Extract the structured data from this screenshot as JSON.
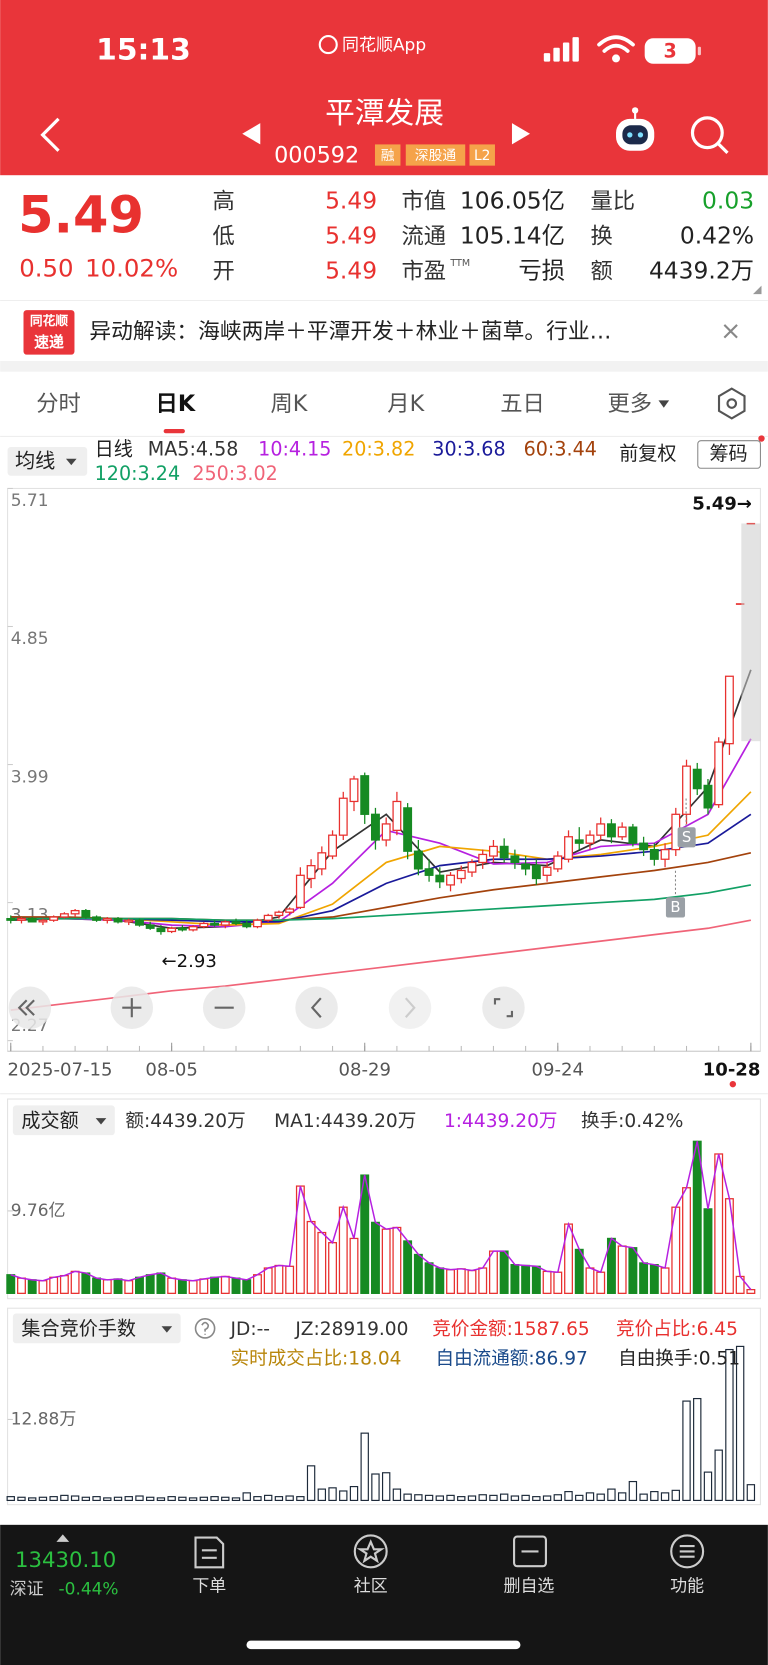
{
  "status": {
    "time": "15:13",
    "app": "同花顺App",
    "battery": "3"
  },
  "header": {
    "title": "平潭发展",
    "code": "000592",
    "tags": [
      "融",
      "深股通",
      "L2"
    ]
  },
  "quote": {
    "price": "5.49",
    "change": "0.50",
    "pct": "10.02%",
    "fields": [
      {
        "label": "高",
        "value": "5.49",
        "color": "#e8312f"
      },
      {
        "label": "低",
        "value": "5.49",
        "color": "#e8312f"
      },
      {
        "label": "开",
        "value": "5.49",
        "color": "#e8312f"
      },
      {
        "label": "市值",
        "value": "106.05亿",
        "color": "#222222"
      },
      {
        "label": "流通",
        "value": "105.14亿",
        "color": "#222222"
      },
      {
        "label": "市盈",
        "sup": "TTM",
        "value": "亏损",
        "color": "#222222"
      },
      {
        "label": "量比",
        "value": "0.03",
        "color": "#17a02b"
      },
      {
        "label": "换",
        "value": "0.42%",
        "color": "#222222"
      },
      {
        "label": "额",
        "value": "4439.2万",
        "color": "#222222"
      }
    ]
  },
  "news": {
    "badge": [
      "同花顺",
      "速递"
    ],
    "text": "异动解读：海峡两岸＋平潭开发＋林业＋菌草。行业…"
  },
  "tabs": [
    "分时",
    "日K",
    "周K",
    "月K",
    "五日",
    "更多"
  ],
  "ma_bar": {
    "button": "均线",
    "period": "日线",
    "adjust": "前复权",
    "chips": "筹码",
    "items": [
      {
        "label": "MA5:4.58",
        "color": "#333333"
      },
      {
        "label": "10:4.15",
        "color": "#b620e0"
      },
      {
        "label": "20:3.82",
        "color": "#f0a500"
      },
      {
        "label": "30:3.68",
        "color": "#1a1a9a"
      },
      {
        "label": "60:3.44",
        "color": "#a3420c"
      },
      {
        "label": "120:3.24",
        "color": "#12a065"
      },
      {
        "label": "250:3.02",
        "color": "#f06478"
      }
    ]
  },
  "chart_data": [
    {
      "type": "candlestick",
      "categories": [
        "2025-07-15",
        null,
        null,
        null,
        null,
        null,
        null,
        null,
        null,
        null,
        null,
        null,
        null,
        null,
        null,
        "08-05",
        null,
        null,
        null,
        null,
        null,
        null,
        null,
        null,
        null,
        null,
        null,
        null,
        null,
        null,
        null,
        null,
        null,
        "08-29",
        null,
        null,
        null,
        null,
        null,
        null,
        null,
        null,
        null,
        null,
        null,
        null,
        null,
        null,
        null,
        null,
        null,
        "09-24",
        null,
        null,
        null,
        null,
        null,
        null,
        null,
        null,
        null,
        null,
        null,
        null,
        null,
        null,
        null,
        null,
        null,
        "10-28"
      ],
      "open": [
        3.03,
        3.02,
        3.03,
        3.01,
        3.02,
        3.04,
        3.06,
        3.08,
        3.04,
        3.02,
        3.03,
        3.01,
        3.02,
        2.99,
        2.97,
        2.95,
        2.97,
        2.96,
        2.98,
        3.0,
        2.99,
        3.01,
        3.0,
        2.98,
        3.02,
        3.05,
        3.07,
        3.1,
        3.28,
        3.34,
        3.42,
        3.55,
        3.76,
        3.92,
        3.68,
        3.52,
        3.58,
        3.72,
        3.45,
        3.34,
        3.3,
        3.24,
        3.28,
        3.32,
        3.38,
        3.42,
        3.48,
        3.42,
        3.37,
        3.36,
        3.3,
        3.34,
        3.4,
        3.52,
        3.5,
        3.55,
        3.62,
        3.54,
        3.6,
        3.5,
        3.46,
        3.4,
        3.46,
        3.68,
        3.96,
        3.86,
        3.74,
        4.12,
        4.99,
        5.49
      ],
      "high": [
        3.05,
        3.04,
        3.04,
        3.03,
        3.05,
        3.07,
        3.09,
        3.09,
        3.05,
        3.04,
        3.04,
        3.03,
        3.03,
        3.01,
        2.99,
        2.98,
        2.99,
        2.99,
        3.01,
        3.02,
        3.02,
        3.03,
        3.02,
        3.03,
        3.06,
        3.08,
        3.1,
        3.35,
        3.4,
        3.48,
        3.58,
        3.82,
        3.92,
        3.94,
        3.72,
        3.66,
        3.82,
        3.75,
        3.52,
        3.4,
        3.35,
        3.32,
        3.36,
        3.4,
        3.46,
        3.52,
        3.53,
        3.46,
        3.42,
        3.4,
        3.38,
        3.45,
        3.58,
        3.6,
        3.58,
        3.66,
        3.65,
        3.63,
        3.62,
        3.54,
        3.5,
        3.5,
        3.72,
        4.02,
        4.0,
        3.9,
        4.16,
        4.54,
        4.99,
        5.49
      ],
      "low": [
        3.0,
        3.0,
        3.01,
        2.99,
        3.01,
        3.03,
        3.04,
        3.03,
        3.01,
        3.0,
        3.0,
        2.99,
        2.98,
        2.96,
        2.93,
        2.94,
        2.95,
        2.95,
        2.97,
        2.98,
        2.97,
        2.99,
        2.97,
        2.97,
        3.01,
        3.03,
        3.05,
        3.09,
        3.22,
        3.3,
        3.4,
        3.52,
        3.7,
        3.62,
        3.46,
        3.48,
        3.55,
        3.4,
        3.3,
        3.26,
        3.22,
        3.2,
        3.25,
        3.29,
        3.34,
        3.38,
        3.38,
        3.34,
        3.3,
        3.24,
        3.26,
        3.32,
        3.38,
        3.46,
        3.46,
        3.52,
        3.5,
        3.52,
        3.48,
        3.42,
        3.36,
        3.35,
        3.42,
        3.62,
        3.8,
        3.68,
        3.72,
        4.05,
        4.99,
        5.49
      ],
      "close": [
        3.02,
        3.03,
        3.01,
        3.02,
        3.04,
        3.06,
        3.08,
        3.04,
        3.02,
        3.03,
        3.01,
        3.02,
        2.99,
        2.97,
        2.95,
        2.97,
        2.96,
        2.98,
        3.0,
        2.99,
        3.01,
        3.0,
        2.98,
        3.02,
        3.05,
        3.07,
        3.09,
        3.3,
        3.36,
        3.44,
        3.55,
        3.78,
        3.9,
        3.68,
        3.52,
        3.62,
        3.76,
        3.45,
        3.34,
        3.3,
        3.26,
        3.3,
        3.33,
        3.38,
        3.43,
        3.48,
        3.41,
        3.38,
        3.34,
        3.28,
        3.35,
        3.42,
        3.54,
        3.5,
        3.55,
        3.62,
        3.54,
        3.6,
        3.5,
        3.46,
        3.4,
        3.46,
        3.68,
        3.98,
        3.84,
        3.72,
        4.13,
        4.54,
        4.99,
        5.49
      ],
      "ma_x": [
        0,
        5,
        10,
        15,
        20,
        25,
        30,
        35,
        40,
        45,
        50,
        55,
        60,
        65,
        69
      ],
      "ma_series": [
        {
          "color": "#333333",
          "values": [
            3.02,
            3.03,
            3.02,
            2.97,
            2.98,
            3.04,
            3.45,
            3.68,
            3.32,
            3.38,
            3.36,
            3.52,
            3.48,
            3.85,
            4.58
          ]
        },
        {
          "color": "#b620e0",
          "values": [
            3.03,
            3.03,
            3.02,
            2.99,
            2.98,
            3.01,
            3.25,
            3.58,
            3.5,
            3.37,
            3.38,
            3.48,
            3.5,
            3.68,
            4.15
          ]
        },
        {
          "color": "#f0a500",
          "values": [
            3.04,
            3.03,
            3.03,
            3.01,
            2.99,
            3.0,
            3.12,
            3.38,
            3.48,
            3.45,
            3.4,
            3.43,
            3.48,
            3.55,
            3.82
          ]
        },
        {
          "color": "#1a1a9a",
          "values": [
            3.04,
            3.03,
            3.03,
            3.02,
            3.01,
            3.01,
            3.08,
            3.25,
            3.36,
            3.4,
            3.4,
            3.42,
            3.45,
            3.5,
            3.68
          ]
        },
        {
          "color": "#a3420c",
          "values": [
            3.04,
            3.04,
            3.03,
            3.03,
            3.02,
            3.02,
            3.04,
            3.1,
            3.16,
            3.21,
            3.25,
            3.29,
            3.33,
            3.38,
            3.44
          ]
        },
        {
          "color": "#12a065",
          "values": [
            3.03,
            3.03,
            3.03,
            3.03,
            3.02,
            3.02,
            3.03,
            3.05,
            3.07,
            3.09,
            3.11,
            3.13,
            3.15,
            3.19,
            3.24
          ]
        },
        {
          "color": "#f06478",
          "values": [
            2.46,
            2.5,
            2.54,
            2.58,
            2.61,
            2.65,
            2.69,
            2.73,
            2.77,
            2.81,
            2.85,
            2.89,
            2.93,
            2.97,
            3.02
          ]
        }
      ],
      "ylim": [
        2.27,
        5.71
      ],
      "yticks": [
        5.71,
        4.85,
        3.99,
        3.13,
        2.27
      ],
      "annotations": {
        "low": "←2.93",
        "last": "5.49→",
        "sell": "S",
        "buy": "B"
      },
      "up_color": "#e8312f",
      "down_color": "#168a22"
    },
    {
      "type": "bar",
      "title": "成交额",
      "legend": [
        {
          "text": "额:4439.20万",
          "color": "#333333"
        },
        {
          "text": "MA1:4439.20万",
          "color": "#333333"
        },
        {
          "text": "1:4439.20万",
          "color": "#b620e0"
        },
        {
          "text": "换手:0.42%",
          "color": "#333333"
        }
      ],
      "values": [
        2.2,
        1.8,
        1.6,
        1.5,
        1.9,
        2.1,
        2.6,
        2.4,
        1.8,
        1.6,
        1.7,
        1.5,
        1.9,
        2.2,
        2.4,
        1.8,
        1.6,
        1.5,
        1.7,
        1.9,
        2.0,
        1.8,
        1.6,
        2.2,
        3.0,
        3.3,
        3.2,
        12.7,
        8.5,
        7.2,
        6.0,
        10.2,
        6.5,
        14.0,
        8.4,
        7.6,
        7.8,
        6.2,
        4.6,
        3.6,
        3.0,
        2.8,
        2.9,
        2.7,
        3.0,
        5.0,
        5.0,
        3.4,
        3.3,
        3.2,
        2.6,
        2.5,
        8.2,
        5.2,
        3.0,
        2.5,
        6.5,
        5.6,
        5.4,
        3.6,
        3.4,
        3.0,
        10.2,
        12.5,
        18.0,
        10.0,
        16.5,
        11.2,
        2.0,
        0.44
      ],
      "line_color": "#b620e0",
      "ylim": [
        0,
        22
      ],
      "yticks": [
        {
          "value": 9.76,
          "label": "9.76亿"
        }
      ]
    },
    {
      "type": "bar",
      "title": "集合竞价手数",
      "stats": [
        {
          "text": "JD:--",
          "color": "#333333"
        },
        {
          "text": "JZ:28919.00",
          "color": "#333333"
        },
        {
          "text": "竞价金额:1587.65",
          "color": "#e8312f"
        },
        {
          "text": "竞价占比:6.45",
          "color": "#e8312f"
        },
        {
          "text": "实时成交占比:18.04",
          "color": "#b8860b"
        },
        {
          "text": "自由流通额:86.97",
          "color": "#1a4a8a"
        },
        {
          "text": "自由换手:0.51",
          "color": "#222222"
        }
      ],
      "values": [
        0.6,
        0.5,
        0.4,
        0.5,
        0.6,
        0.8,
        0.7,
        0.5,
        0.6,
        0.4,
        0.5,
        0.6,
        0.7,
        0.5,
        0.4,
        0.6,
        0.5,
        0.4,
        0.5,
        0.6,
        0.5,
        0.4,
        1.2,
        0.6,
        0.8,
        0.6,
        0.7,
        0.6,
        5.5,
        1.8,
        2.0,
        1.5,
        2.2,
        10.7,
        4.2,
        4.4,
        1.8,
        1.0,
        0.9,
        0.8,
        0.7,
        0.8,
        0.6,
        0.7,
        0.9,
        0.8,
        1.0,
        0.7,
        0.8,
        0.6,
        0.7,
        0.9,
        1.4,
        0.8,
        1.2,
        1.0,
        1.8,
        1.2,
        3.0,
        1.0,
        1.4,
        1.2,
        1.6,
        15.8,
        16.2,
        4.5,
        8.0,
        24.0,
        24.5,
        2.5
      ],
      "color": "#1d2a3a",
      "ylim": [
        0,
        25
      ],
      "yticks": [
        {
          "value": 12.88,
          "label": "12.88万"
        }
      ]
    }
  ],
  "bottom": {
    "index_value": "13430.10",
    "index_name": "深证",
    "index_change": "-0.44%",
    "nav": [
      "下单",
      "社区",
      "删自选",
      "功能"
    ]
  }
}
